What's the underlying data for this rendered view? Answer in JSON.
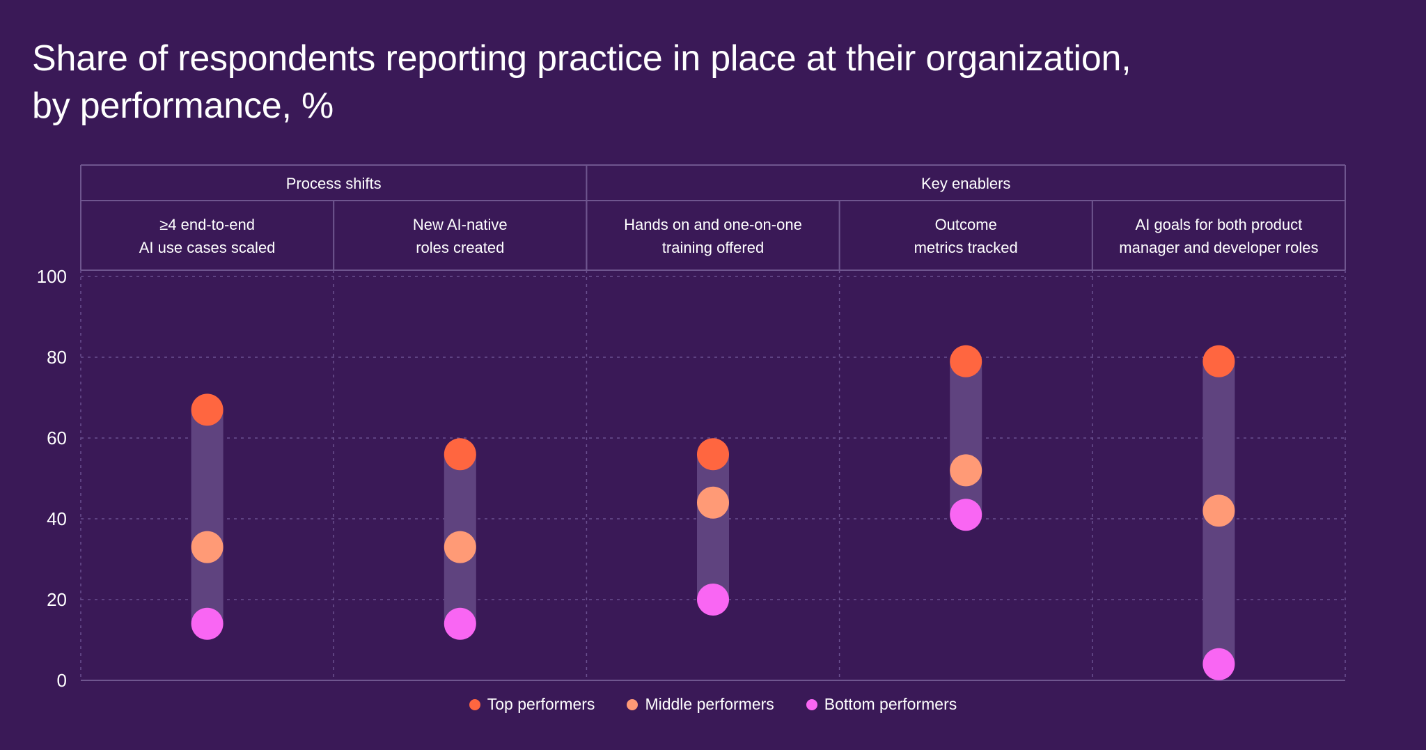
{
  "title": {
    "line1": "Share of respondents reporting practice in place at their organization,",
    "line2": "by performance, %"
  },
  "colors": {
    "background": "#3a1957",
    "top": "#ff6640",
    "middle": "#ff9a76",
    "bottom": "#f966f3",
    "range_bar": "#5f437f",
    "grid": "#6b5190",
    "frame": "#6f568f"
  },
  "chart_data": {
    "type": "dot-range",
    "title": "Share of respondents reporting practice in place at their organization, by performance, %",
    "groups": [
      {
        "label": "Process shifts",
        "span": 2
      },
      {
        "label": "Key enablers",
        "span": 3
      }
    ],
    "categories": [
      [
        "≥4 end-to-end",
        "AI use cases scaled"
      ],
      [
        "New AI-native",
        "roles created"
      ],
      [
        "Hands on and one-on-one",
        "training offered"
      ],
      [
        "Outcome",
        "metrics tracked"
      ],
      [
        "AI goals for both product",
        "manager and developer roles"
      ]
    ],
    "series": [
      {
        "name": "Top performers",
        "color": "#ff6640",
        "values": [
          67,
          56,
          56,
          79,
          79
        ]
      },
      {
        "name": "Middle performers",
        "color": "#ff9a76",
        "values": [
          33,
          33,
          44,
          52,
          42
        ]
      },
      {
        "name": "Bottom performers",
        "color": "#f966f3",
        "values": [
          14,
          14,
          20,
          41,
          4
        ]
      }
    ],
    "ylim": [
      0,
      100
    ],
    "yticks": [
      0,
      20,
      40,
      60,
      80,
      100
    ],
    "grid": true,
    "legend_position": "bottom-center"
  }
}
